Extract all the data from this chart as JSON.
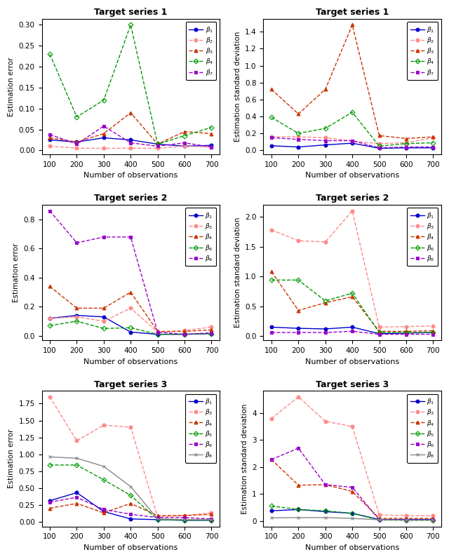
{
  "x": [
    100,
    200,
    300,
    400,
    500,
    600,
    700
  ],
  "xlabel": "Number of observations",
  "s1_error": {
    "beta1": [
      0.025,
      0.02,
      0.03,
      0.025,
      0.015,
      0.01,
      0.012
    ],
    "beta2": [
      0.01,
      0.005,
      0.005,
      0.005,
      0.005,
      0.01,
      0.008
    ],
    "beta3": [
      0.03,
      0.02,
      0.04,
      0.09,
      0.015,
      0.045,
      0.04
    ],
    "beta4": [
      0.23,
      0.08,
      0.12,
      0.3,
      0.015,
      0.035,
      0.055
    ],
    "beta7": [
      0.038,
      0.015,
      0.058,
      0.018,
      0.01,
      0.018,
      0.008
    ]
  },
  "s1_std": {
    "beta1": [
      0.055,
      0.04,
      0.065,
      0.085,
      0.025,
      0.03,
      0.03
    ],
    "beta2": [
      0.16,
      0.16,
      0.15,
      0.11,
      0.08,
      0.09,
      0.15
    ],
    "beta3": [
      0.72,
      0.43,
      0.72,
      1.48,
      0.175,
      0.14,
      0.16
    ],
    "beta4": [
      0.39,
      0.2,
      0.26,
      0.45,
      0.05,
      0.08,
      0.09
    ],
    "beta7": [
      0.15,
      0.13,
      0.115,
      0.115,
      0.03,
      0.04,
      0.04
    ]
  },
  "s2_error": {
    "beta1": [
      0.12,
      0.14,
      0.13,
      0.025,
      0.01,
      0.01,
      0.015
    ],
    "beta3": [
      0.12,
      0.13,
      0.1,
      0.19,
      0.025,
      0.035,
      0.06
    ],
    "beta4": [
      0.34,
      0.19,
      0.19,
      0.3,
      0.03,
      0.03,
      0.04
    ],
    "beta6": [
      0.07,
      0.1,
      0.05,
      0.055,
      0.01,
      0.01,
      0.015
    ],
    "beta8": [
      0.86,
      0.64,
      0.68,
      0.68,
      0.025,
      0.01,
      0.02
    ]
  },
  "s2_std": {
    "beta1": [
      0.15,
      0.13,
      0.12,
      0.15,
      0.04,
      0.05,
      0.06
    ],
    "beta3": [
      1.78,
      1.6,
      1.58,
      2.1,
      0.15,
      0.16,
      0.17
    ],
    "beta4": [
      1.08,
      0.43,
      0.56,
      0.66,
      0.08,
      0.08,
      0.09
    ],
    "beta6": [
      0.94,
      0.94,
      0.59,
      0.72,
      0.06,
      0.06,
      0.06
    ],
    "beta8": [
      0.06,
      0.06,
      0.06,
      0.08,
      0.03,
      0.03,
      0.03
    ]
  },
  "s3_error": {
    "beta1": [
      0.31,
      0.43,
      0.15,
      0.04,
      0.03,
      0.02,
      0.02
    ],
    "beta3": [
      1.85,
      1.2,
      1.43,
      1.4,
      0.07,
      0.09,
      0.13
    ],
    "beta4": [
      0.2,
      0.27,
      0.13,
      0.27,
      0.09,
      0.09,
      0.11
    ],
    "beta5": [
      0.84,
      0.84,
      0.62,
      0.39,
      0.03,
      0.02,
      0.02
    ],
    "beta6": [
      0.29,
      0.36,
      0.18,
      0.11,
      0.06,
      0.06,
      0.04
    ],
    "beta8": [
      0.96,
      0.94,
      0.82,
      0.52,
      0.04,
      0.03,
      0.03
    ]
  },
  "s3_std": {
    "beta1": [
      0.38,
      0.43,
      0.35,
      0.29,
      0.06,
      0.06,
      0.06
    ],
    "beta3": [
      3.8,
      4.6,
      3.7,
      3.5,
      0.23,
      0.2,
      0.2
    ],
    "beta4": [
      2.28,
      1.33,
      1.35,
      1.1,
      0.1,
      0.1,
      0.1
    ],
    "beta5": [
      0.56,
      0.43,
      0.38,
      0.29,
      0.04,
      0.03,
      0.03
    ],
    "beta6": [
      2.28,
      2.7,
      1.35,
      1.25,
      0.05,
      0.04,
      0.04
    ],
    "beta8": [
      0.12,
      0.13,
      0.13,
      0.1,
      0.05,
      0.04,
      0.04
    ]
  },
  "blue": "#0000CC",
  "pink": "#FF8888",
  "dkred": "#CC3300",
  "green": "#009900",
  "purple": "#9900CC",
  "gray": "#888888",
  "black": "#111111",
  "bg": "#FFFFFF"
}
